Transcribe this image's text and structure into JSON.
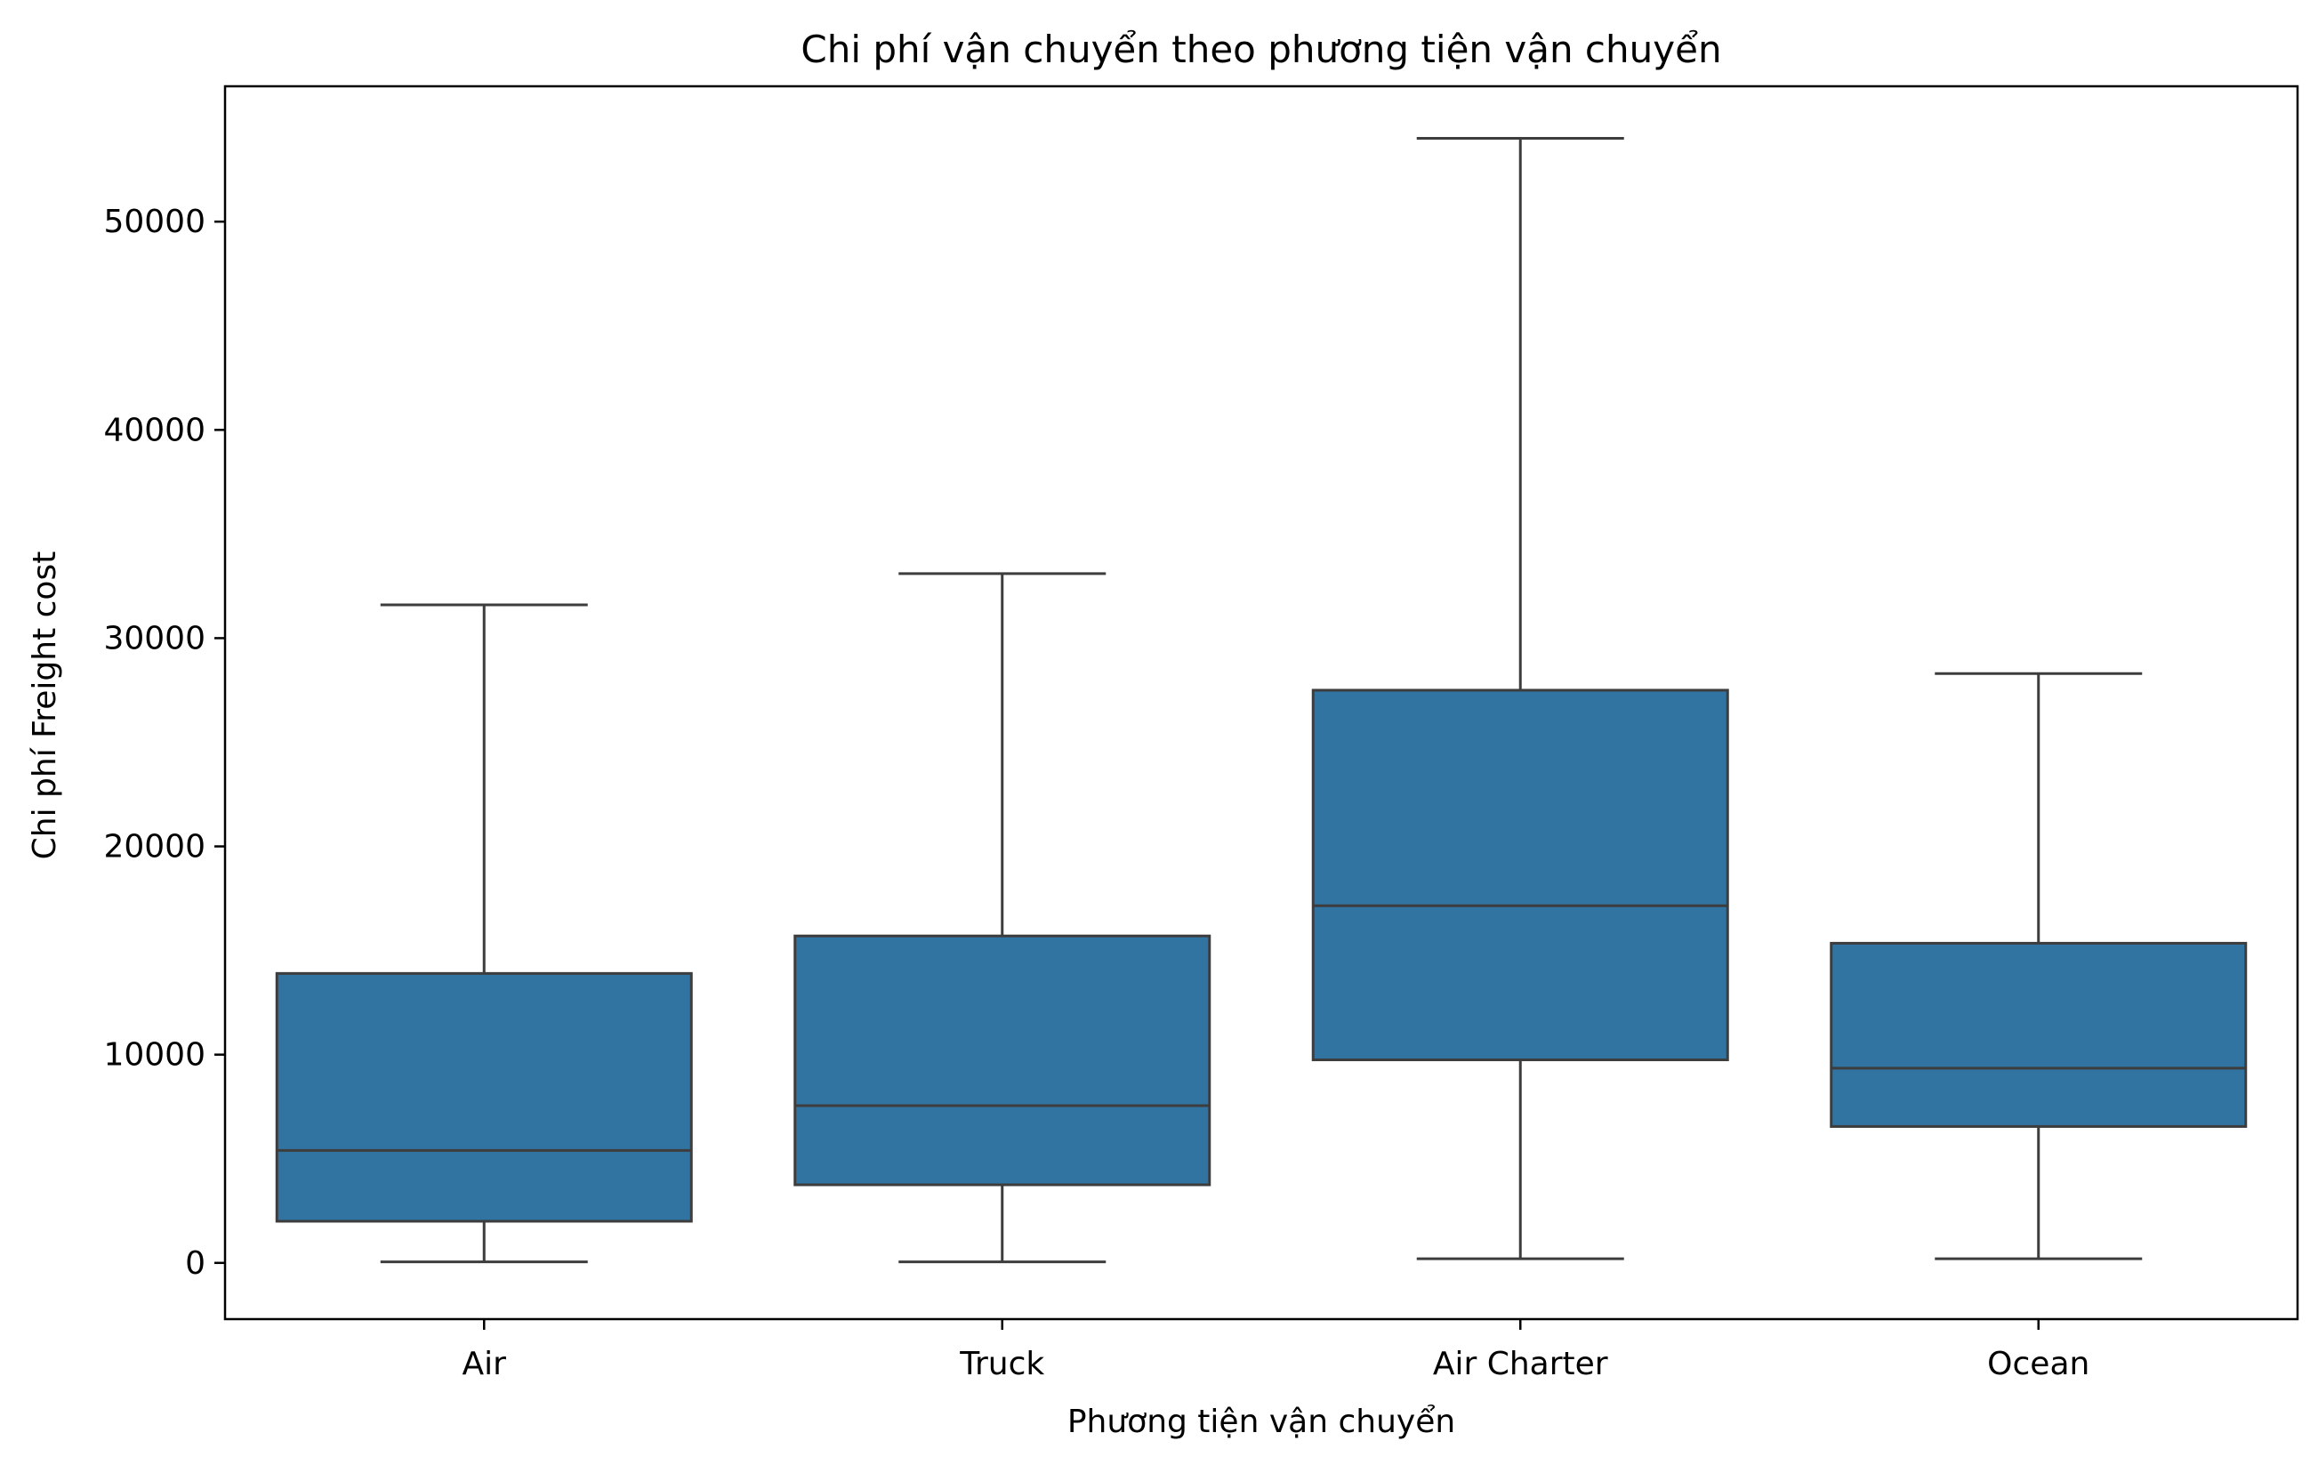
{
  "chart_data": {
    "type": "box",
    "title": "Chi phí vận chuyển theo phương tiện vận chuyển",
    "xlabel": "Phương tiện vận chuyển",
    "ylabel": "Chi phí Freight cost",
    "ylim": [
      -2700,
      56500
    ],
    "yticks": [
      0,
      10000,
      20000,
      30000,
      40000,
      50000
    ],
    "ytick_labels": [
      "0",
      "10000",
      "20000",
      "30000",
      "40000",
      "50000"
    ],
    "grid": false,
    "categories": [
      "Air",
      "Truck",
      "Air Charter",
      "Ocean"
    ],
    "series": [
      {
        "color": "#3274a1",
        "boxes": [
          {
            "category": "Air",
            "whisker_low": 50,
            "q1": 2000,
            "median": 5400,
            "q3": 13900,
            "whisker_high": 31600
          },
          {
            "category": "Truck",
            "whisker_low": 50,
            "q1": 3750,
            "median": 7550,
            "q3": 15700,
            "whisker_high": 33100
          },
          {
            "category": "Air Charter",
            "whisker_low": 200,
            "q1": 9750,
            "median": 17150,
            "q3": 27500,
            "whisker_high": 54000
          },
          {
            "category": "Ocean",
            "whisker_low": 200,
            "q1": 6550,
            "median": 9350,
            "q3": 15350,
            "whisker_high": 28300
          }
        ]
      }
    ],
    "line_color": "#3d3d3d"
  }
}
